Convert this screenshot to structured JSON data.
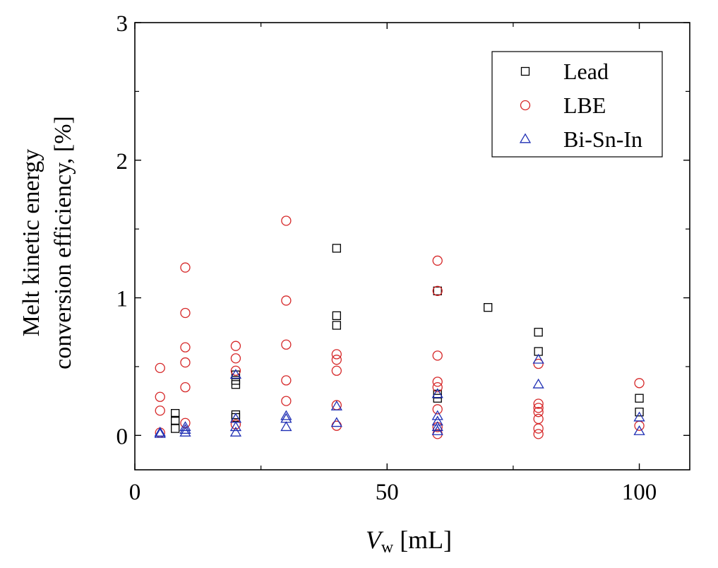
{
  "chart_data": {
    "type": "scatter",
    "title": "",
    "xlabel_var": "V",
    "xlabel_sub": "w",
    "xlabel_unit": "[mL]",
    "ylabel_line1": "Melt kinetic energy",
    "ylabel_line2": "conversion efficiency, [%]",
    "xlim": [
      0,
      110
    ],
    "ylim": [
      -0.25,
      3
    ],
    "x_ticks": [
      0,
      50,
      100
    ],
    "x_tick_labels": [
      "0",
      "50",
      "100"
    ],
    "y_ticks": [
      0,
      1,
      2,
      3
    ],
    "y_tick_labels": [
      "0",
      "1",
      "2",
      "3"
    ],
    "x_minor_ticks": [
      25,
      75
    ],
    "y_minor_ticks": [
      0.5,
      1.5,
      2.5
    ],
    "grid": false,
    "legend_position": "top-right",
    "series": [
      {
        "name": "Lead",
        "marker": "square",
        "color": "#000000",
        "points": [
          [
            8,
            0.16
          ],
          [
            8,
            0.11
          ],
          [
            8,
            0.05
          ],
          [
            20,
            0.44
          ],
          [
            20,
            0.4
          ],
          [
            20,
            0.37
          ],
          [
            20,
            0.15
          ],
          [
            20,
            0.13
          ],
          [
            40,
            1.36
          ],
          [
            40,
            0.87
          ],
          [
            40,
            0.8
          ],
          [
            60,
            1.05
          ],
          [
            60,
            0.3
          ],
          [
            60,
            0.27
          ],
          [
            70,
            0.93
          ],
          [
            80,
            0.75
          ],
          [
            80,
            0.61
          ],
          [
            100,
            0.27
          ],
          [
            100,
            0.17
          ]
        ]
      },
      {
        "name": "LBE",
        "marker": "circle",
        "color": "#d62728",
        "points": [
          [
            5,
            0.49
          ],
          [
            5,
            0.28
          ],
          [
            5,
            0.18
          ],
          [
            5,
            0.02
          ],
          [
            10,
            1.22
          ],
          [
            10,
            0.89
          ],
          [
            10,
            0.64
          ],
          [
            10,
            0.53
          ],
          [
            10,
            0.35
          ],
          [
            10,
            0.09
          ],
          [
            20,
            0.65
          ],
          [
            20,
            0.56
          ],
          [
            20,
            0.47
          ],
          [
            20,
            0.08
          ],
          [
            30,
            1.56
          ],
          [
            30,
            0.98
          ],
          [
            30,
            0.66
          ],
          [
            30,
            0.4
          ],
          [
            30,
            0.25
          ],
          [
            40,
            0.59
          ],
          [
            40,
            0.55
          ],
          [
            40,
            0.47
          ],
          [
            40,
            0.22
          ],
          [
            40,
            0.07
          ],
          [
            60,
            1.27
          ],
          [
            60,
            1.05
          ],
          [
            60,
            0.58
          ],
          [
            60,
            0.39
          ],
          [
            60,
            0.35
          ],
          [
            60,
            0.19
          ],
          [
            60,
            0.06
          ],
          [
            60,
            0.01
          ],
          [
            80,
            0.52
          ],
          [
            80,
            0.23
          ],
          [
            80,
            0.2
          ],
          [
            80,
            0.17
          ],
          [
            80,
            0.12
          ],
          [
            80,
            0.05
          ],
          [
            80,
            0.01
          ],
          [
            100,
            0.38
          ],
          [
            100,
            0.07
          ]
        ]
      },
      {
        "name": "Bi-Sn-In",
        "marker": "triangle",
        "color": "#1f2fb4",
        "points": [
          [
            5,
            0.02
          ],
          [
            5,
            0.01
          ],
          [
            10,
            0.06
          ],
          [
            10,
            0.04
          ],
          [
            10,
            0.02
          ],
          [
            20,
            0.44
          ],
          [
            20,
            0.12
          ],
          [
            20,
            0.06
          ],
          [
            20,
            0.02
          ],
          [
            30,
            0.14
          ],
          [
            30,
            0.12
          ],
          [
            30,
            0.06
          ],
          [
            40,
            0.21
          ],
          [
            40,
            0.09
          ],
          [
            60,
            0.3
          ],
          [
            60,
            0.14
          ],
          [
            60,
            0.1
          ],
          [
            60,
            0.06
          ],
          [
            60,
            0.03
          ],
          [
            80,
            0.55
          ],
          [
            80,
            0.37
          ],
          [
            100,
            0.13
          ],
          [
            100,
            0.03
          ]
        ]
      }
    ]
  }
}
